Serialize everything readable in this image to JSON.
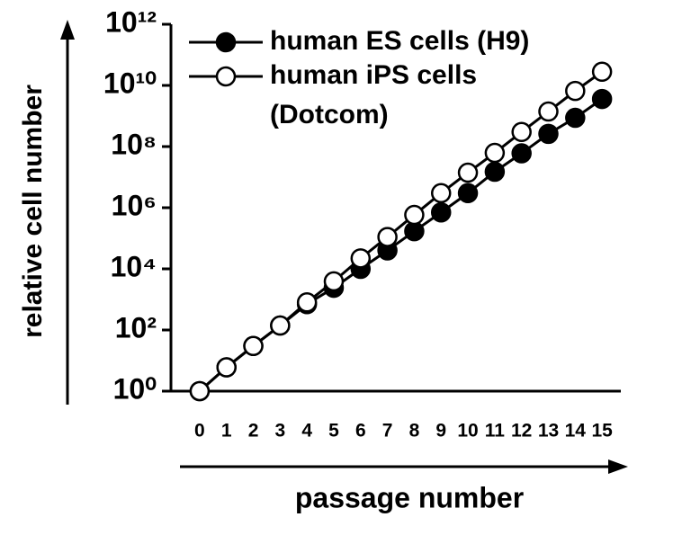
{
  "chart_data": {
    "type": "line",
    "xlabel": "passage number",
    "ylabel": "relative cell number",
    "x": [
      0,
      1,
      2,
      3,
      4,
      5,
      6,
      7,
      8,
      9,
      10,
      11,
      12,
      13,
      14,
      15
    ],
    "xlim": [
      -1.07,
      15.7
    ],
    "ylim": [
      1,
      1000000000000
    ],
    "log_y": true,
    "yticks": [
      {
        "value": 1,
        "label": "10⁰"
      },
      {
        "value": 100,
        "label": "10²"
      },
      {
        "value": 10000,
        "label": "10⁴"
      },
      {
        "value": 1000000,
        "label": "10⁶"
      },
      {
        "value": 100000000,
        "label": "10⁸"
      },
      {
        "value": 10000000000,
        "label": "10¹⁰"
      },
      {
        "value": 1000000000000,
        "label": "10¹²"
      }
    ],
    "legend": "upper left",
    "series": [
      {
        "name": "human ES cells (H9)",
        "color": "#000000",
        "marker": "filled",
        "values": [
          1,
          6,
          30,
          140,
          700,
          2400,
          10000,
          40000,
          170000,
          700000,
          3000000,
          15000000,
          60000000,
          260000000,
          870000000,
          3600000000
        ]
      },
      {
        "name": "human iPS cells (Dotcom)",
        "color": "#000000",
        "marker": "open",
        "values": [
          1,
          6,
          30,
          140,
          800,
          3900,
          22000,
          110000,
          580000,
          3000000,
          14000000,
          62000000,
          300000000,
          1400000000,
          6600000000,
          28000000000
        ]
      }
    ]
  }
}
